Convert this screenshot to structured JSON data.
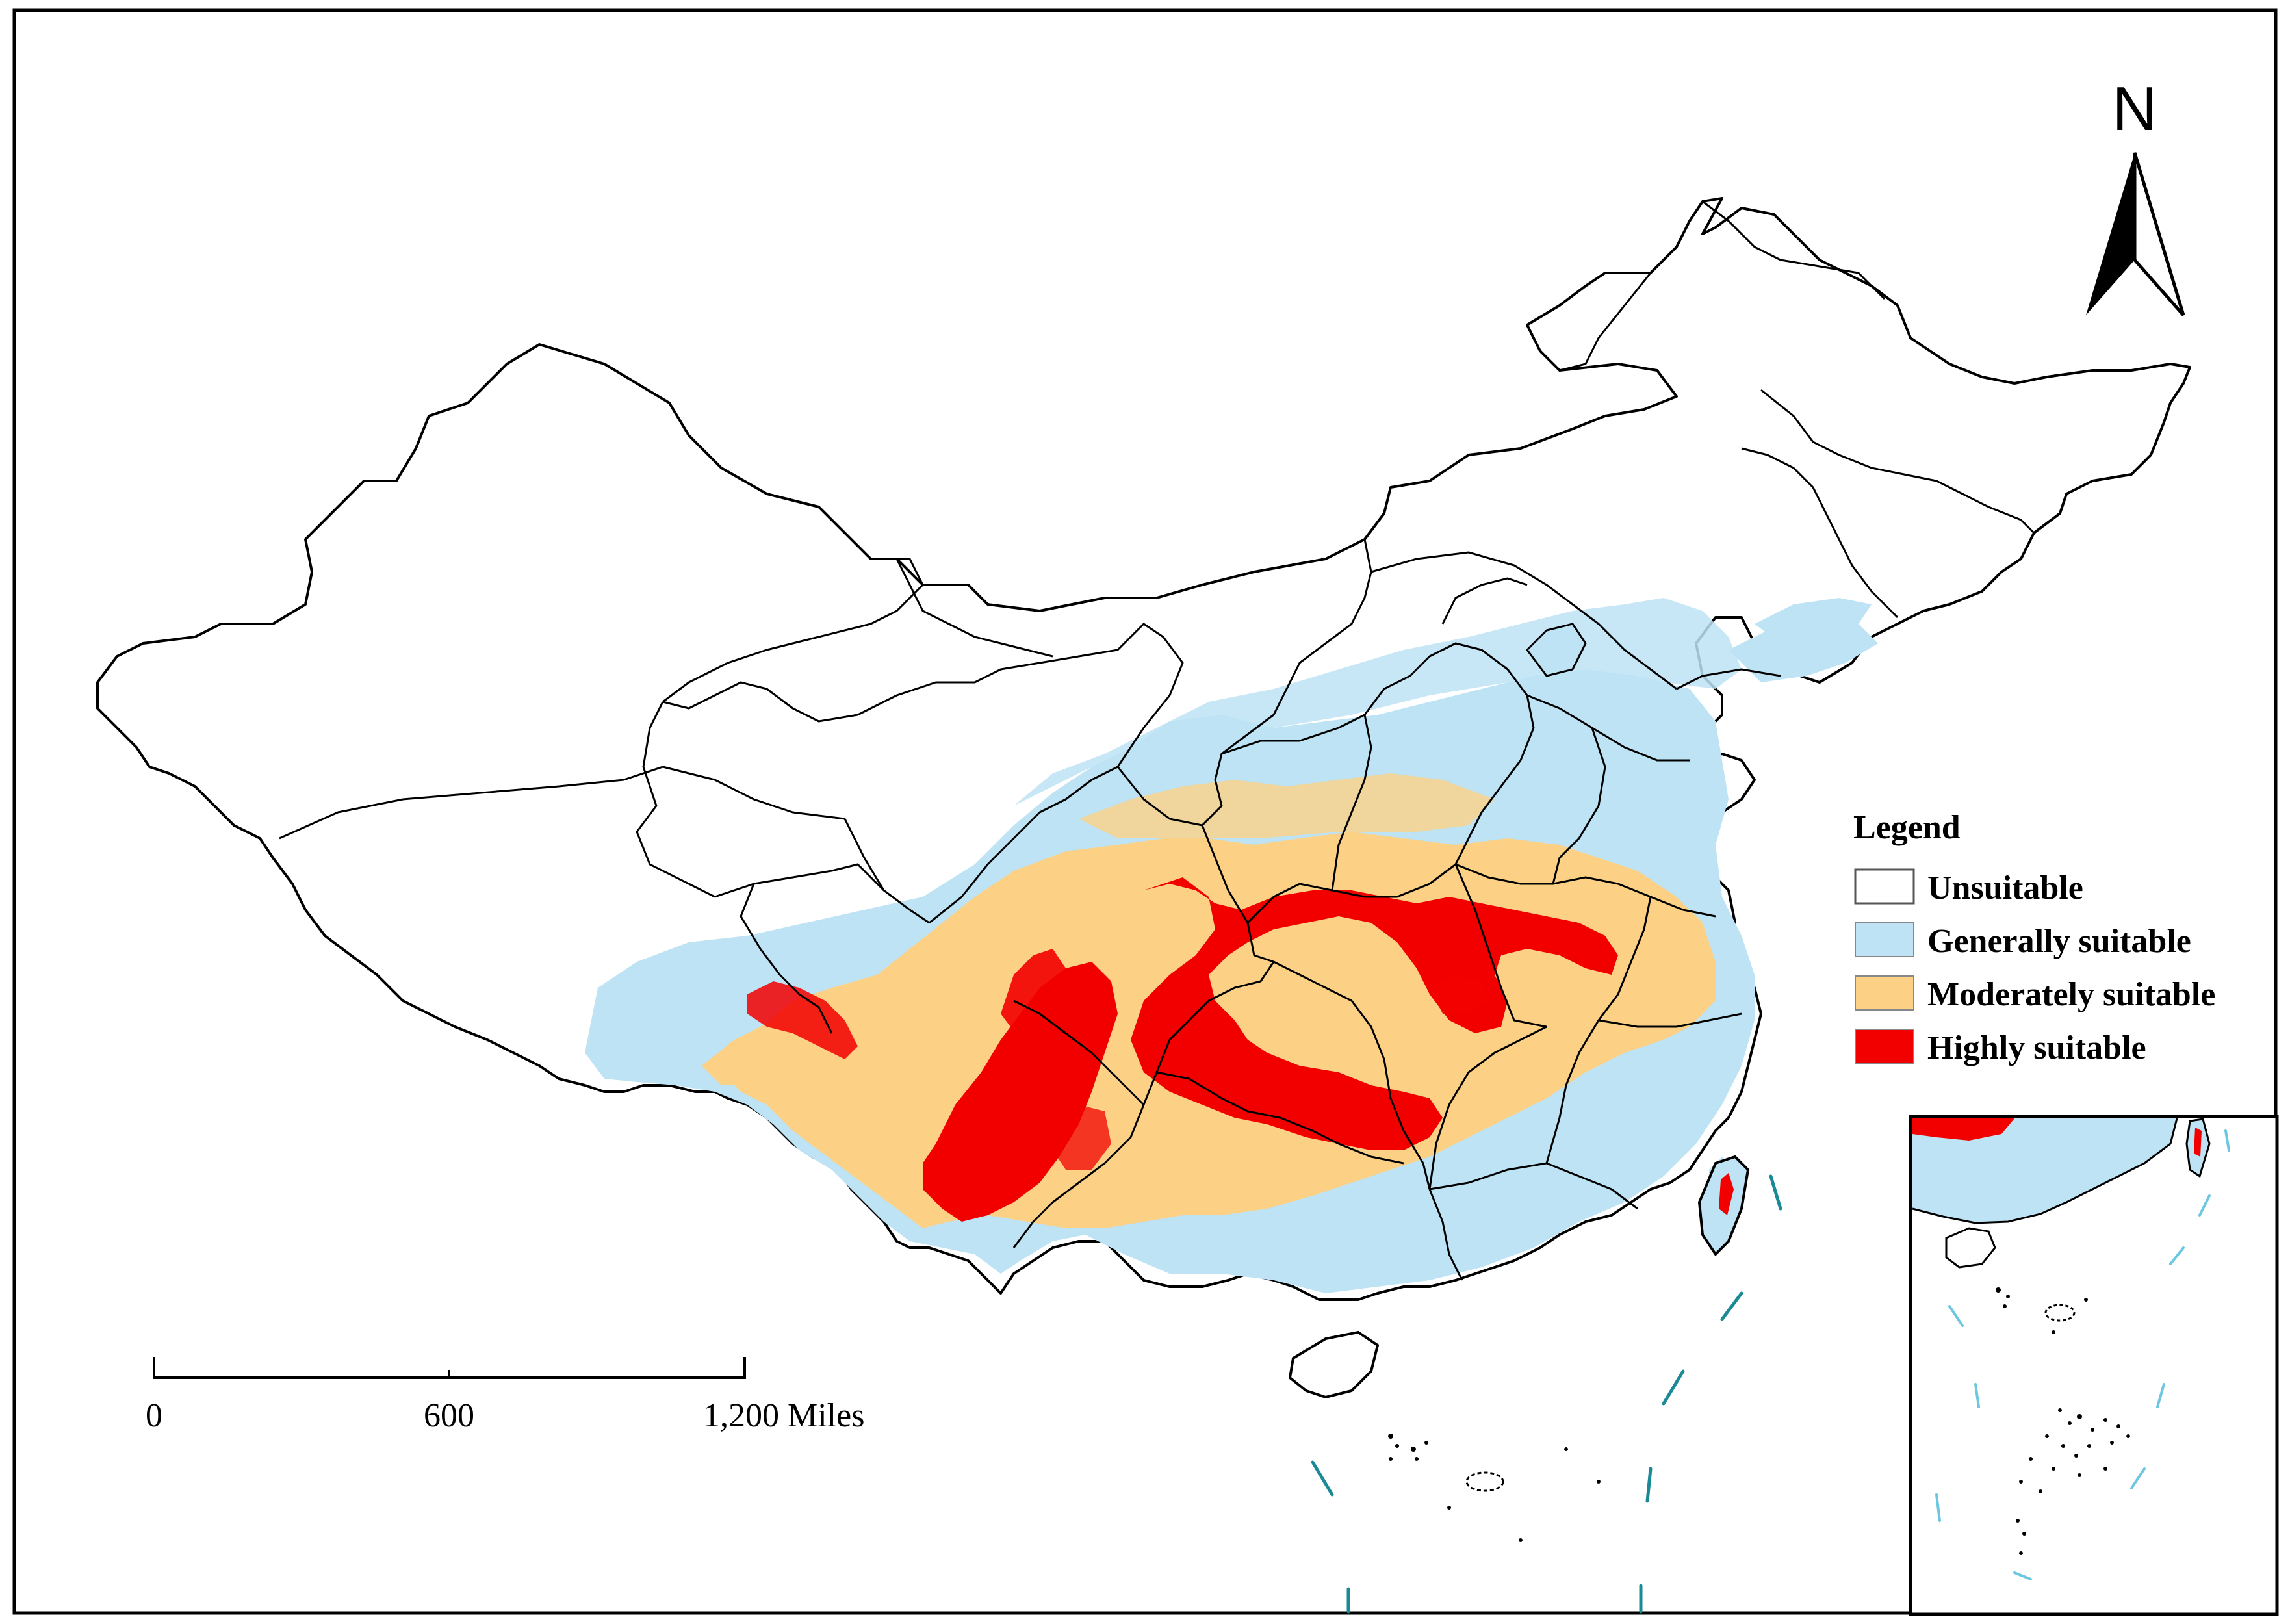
{
  "north_arrow": {
    "label": "N"
  },
  "legend": {
    "title": "Legend",
    "items": [
      {
        "label": "Unsuitable",
        "color": "#ffffff"
      },
      {
        "label": "Generally suitable",
        "color": "#bde3f4"
      },
      {
        "label": "Moderately suitable",
        "color": "#fcd186"
      },
      {
        "label": "Highly suitable",
        "color": "#f20000"
      }
    ]
  },
  "scale_bar": {
    "ticks": [
      "0",
      "600",
      "1,200 Miles"
    ]
  },
  "colors": {
    "border": "#000000",
    "dash_line": "#1a8a96",
    "inset_dash": "#6cc7e0"
  }
}
